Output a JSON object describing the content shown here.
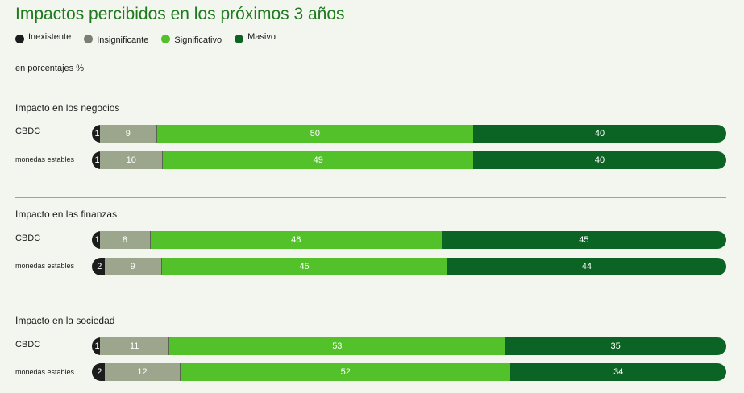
{
  "chart_data": {
    "type": "bar",
    "orientation": "horizontal",
    "stacked": true,
    "title": "Impactos percibidos en los próximos 3 años",
    "unit_note": "en porcentajes %",
    "legend": [
      {
        "name": "Inexistente",
        "color": "#1c1c1c"
      },
      {
        "name": "Insignificante",
        "color": "#9ca68c"
      },
      {
        "name": "Significativo",
        "color": "#52c12a"
      },
      {
        "name": "Masivo",
        "color": "#0c6424"
      }
    ],
    "legend_position": "top-left",
    "groups": [
      {
        "title": "Impacto en los negocios",
        "rows": [
          {
            "label": "CBDC",
            "values": [
              1,
              9,
              50,
              40
            ]
          },
          {
            "label": "monedas estables",
            "values": [
              1,
              10,
              49,
              40
            ]
          }
        ]
      },
      {
        "title": "Impacto en las finanzas",
        "rows": [
          {
            "label": "CBDC",
            "values": [
              1,
              8,
              46,
              45
            ]
          },
          {
            "label": "monedas estables",
            "values": [
              2,
              9,
              45,
              44
            ]
          }
        ]
      },
      {
        "title": "Impacto en la sociedad",
        "rows": [
          {
            "label": "CBDC",
            "values": [
              1,
              11,
              53,
              35
            ]
          },
          {
            "label": "monedas estables",
            "values": [
              2,
              12,
              52,
              34
            ]
          }
        ]
      }
    ]
  }
}
